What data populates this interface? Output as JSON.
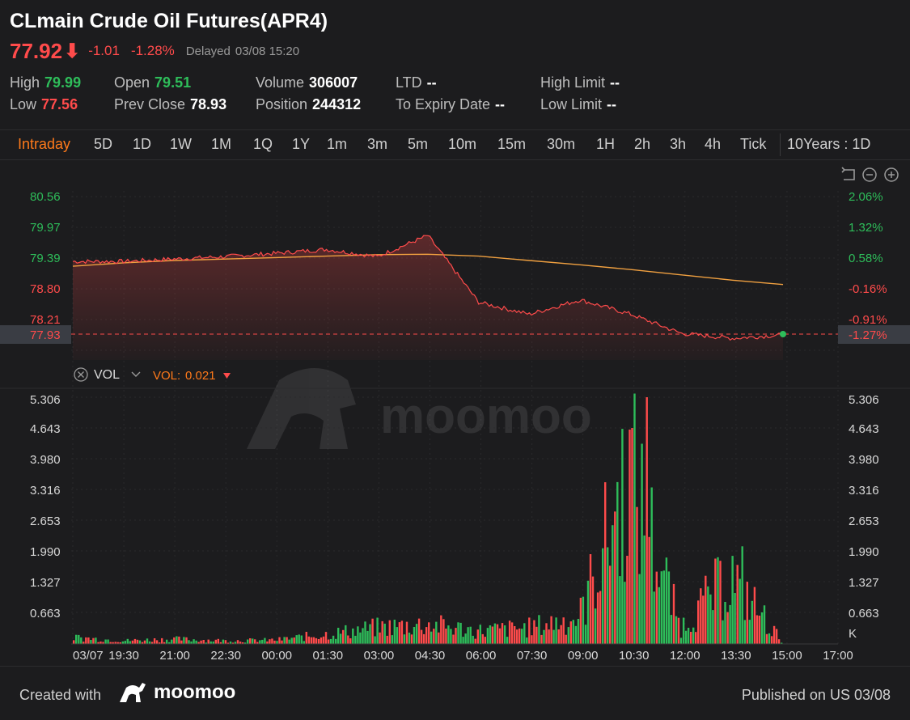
{
  "header": {
    "title": "CLmain Crude Oil Futures(APR4)",
    "price": "77.92",
    "arrow": "⬇",
    "change": "-1.01",
    "change_pct": "-1.28%",
    "delayed": "Delayed",
    "datetime": "03/08 15:20"
  },
  "stats": {
    "high_label": "High",
    "high": "79.99",
    "low_label": "Low",
    "low": "77.56",
    "open_label": "Open",
    "open": "79.51",
    "prev_close_label": "Prev Close",
    "prev_close": "78.93",
    "volume_label": "Volume",
    "volume": "306007",
    "position_label": "Position",
    "position": "244312",
    "ltd_label": "LTD",
    "ltd": "--",
    "expiry_label": "To Expiry Date",
    "expiry": "--",
    "high_limit_label": "High Limit",
    "high_limit": "--",
    "low_limit_label": "Low Limit",
    "low_limit": "--"
  },
  "tabs": [
    "Intraday",
    "5D",
    "1D",
    "1W",
    "1M",
    "1Q",
    "1Y",
    "1m",
    "3m",
    "5m",
    "10m",
    "15m",
    "30m",
    "1H",
    "2h",
    "3h",
    "4h",
    "Tick"
  ],
  "active_tab": "Intraday",
  "range_selector": "10Years : 1D",
  "price_chart": {
    "y_left": [
      "80.56",
      "79.97",
      "79.39",
      "78.80",
      "78.21",
      "77.93"
    ],
    "y_right": [
      "2.06%",
      "1.32%",
      "0.58%",
      "-0.16%",
      "-0.91%",
      "-1.27%"
    ],
    "current_label": "77.93",
    "current_pct": "-1.27%"
  },
  "volume_panel": {
    "indicator": "VOL",
    "vol_label": "VOL:",
    "vol_value": "0.021",
    "y_labels": [
      "5.306",
      "4.643",
      "3.980",
      "3.316",
      "2.653",
      "1.990",
      "1.327",
      "0.663"
    ],
    "unit": "K"
  },
  "x_labels": [
    "03/07",
    "19:30",
    "21:00",
    "22:30",
    "00:00",
    "01:30",
    "03:00",
    "04:30",
    "06:00",
    "07:30",
    "09:00",
    "10:30",
    "12:00",
    "13:30",
    "15:00",
    "17:00"
  ],
  "watermark": "moomoo",
  "footer": {
    "created": "Created with",
    "brand": "moomoo",
    "published": "Published on US 03/08"
  },
  "colors": {
    "up": "#2ebd5a",
    "down": "#ff4b4b",
    "accent": "#ff7a1a",
    "avg_line": "#f0a040"
  },
  "chart_data": {
    "type": "line",
    "series": [
      {
        "name": "price",
        "x": [
          "03/07",
          "19:30",
          "21:00",
          "22:30",
          "00:00",
          "01:30",
          "03:00",
          "04:30",
          "06:00",
          "07:30",
          "09:00",
          "10:30",
          "12:00",
          "13:30",
          "15:00"
        ],
        "values": [
          79.45,
          79.45,
          79.5,
          79.55,
          79.62,
          79.7,
          79.55,
          79.99,
          78.6,
          78.35,
          78.65,
          78.35,
          77.95,
          77.85,
          77.92
        ]
      },
      {
        "x": [
          "03/07",
          "19:30",
          "21:00",
          "22:30",
          "00:00",
          "01:30",
          "03:00",
          "04:30",
          "06:00",
          "07:30",
          "09:00",
          "10:30",
          "12:00",
          "13:30",
          "15:00"
        ],
        "values": [
          79.35,
          79.42,
          79.47,
          79.5,
          79.53,
          79.56,
          79.59,
          79.6,
          79.56,
          79.47,
          79.38,
          79.28,
          79.17,
          79.06,
          78.97
        ]
      }
    ],
    "ylim": [
      77.6,
      80.8
    ],
    "volume_k": [
      0.2,
      0.1,
      0.15,
      0.1,
      0.12,
      0.3,
      0.5,
      0.6,
      0.4,
      0.5,
      0.8,
      5.306,
      0.5,
      2.1,
      0.1
    ],
    "volume_ylim": [
      0,
      5.306
    ]
  }
}
